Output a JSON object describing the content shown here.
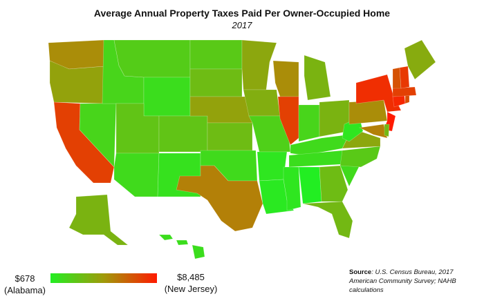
{
  "title": "Average Annual Property Taxes Paid Per Owner-Occupied Home",
  "subtitle": "2017",
  "legend": {
    "min_value": "$678",
    "min_state": "(Alabama)",
    "max_value": "$8,485",
    "max_state": "(New Jersey)",
    "color_low": "#22ee22",
    "color_mid": "#a09a0a",
    "color_high": "#ff1a00"
  },
  "source": {
    "label": "Source",
    "text": ": U.S. Census Bureau, 2017 American Community Survey; NAHB calculations"
  },
  "map_data": {
    "type": "choropleth",
    "metric": "Average annual property taxes per owner-occupied home",
    "states": [
      {
        "code": "WA",
        "level": 0.55
      },
      {
        "code": "OR",
        "level": 0.45
      },
      {
        "code": "CA",
        "level": 0.85
      },
      {
        "code": "NV",
        "level": 0.15
      },
      {
        "code": "ID",
        "level": 0.15
      },
      {
        "code": "MT",
        "level": 0.2
      },
      {
        "code": "WY",
        "level": 0.1
      },
      {
        "code": "UT",
        "level": 0.25
      },
      {
        "code": "AZ",
        "level": 0.12
      },
      {
        "code": "CO",
        "level": 0.25
      },
      {
        "code": "NM",
        "level": 0.08
      },
      {
        "code": "ND",
        "level": 0.22
      },
      {
        "code": "SD",
        "level": 0.3
      },
      {
        "code": "NE",
        "level": 0.45
      },
      {
        "code": "KS",
        "level": 0.3
      },
      {
        "code": "OK",
        "level": 0.12
      },
      {
        "code": "TX",
        "level": 0.6
      },
      {
        "code": "MN",
        "level": 0.42
      },
      {
        "code": "IA",
        "level": 0.38
      },
      {
        "code": "MO",
        "level": 0.18
      },
      {
        "code": "AR",
        "level": 0.05
      },
      {
        "code": "LA",
        "level": 0.03
      },
      {
        "code": "WI",
        "level": 0.55
      },
      {
        "code": "IL",
        "level": 0.85
      },
      {
        "code": "MI",
        "level": 0.35
      },
      {
        "code": "IN",
        "level": 0.15
      },
      {
        "code": "OH",
        "level": 0.35
      },
      {
        "code": "KY",
        "level": 0.12
      },
      {
        "code": "TN",
        "level": 0.1
      },
      {
        "code": "MS",
        "level": 0.05
      },
      {
        "code": "AL",
        "level": 0.0
      },
      {
        "code": "GA",
        "level": 0.3
      },
      {
        "code": "FL",
        "level": 0.32
      },
      {
        "code": "SC",
        "level": 0.12
      },
      {
        "code": "NC",
        "level": 0.22
      },
      {
        "code": "VA",
        "level": 0.42
      },
      {
        "code": "WV",
        "level": 0.05
      },
      {
        "code": "PA",
        "level": 0.55
      },
      {
        "code": "NY",
        "level": 0.92
      },
      {
        "code": "NJ",
        "level": 1.0
      },
      {
        "code": "MD",
        "level": 0.6
      },
      {
        "code": "DE",
        "level": 0.32
      },
      {
        "code": "CT",
        "level": 0.95
      },
      {
        "code": "RI",
        "level": 0.8
      },
      {
        "code": "MA",
        "level": 0.85
      },
      {
        "code": "VT",
        "level": 0.78
      },
      {
        "code": "NH",
        "level": 0.88
      },
      {
        "code": "ME",
        "level": 0.4
      },
      {
        "code": "AK",
        "level": 0.35
      },
      {
        "code": "HI",
        "level": 0.1
      }
    ]
  }
}
